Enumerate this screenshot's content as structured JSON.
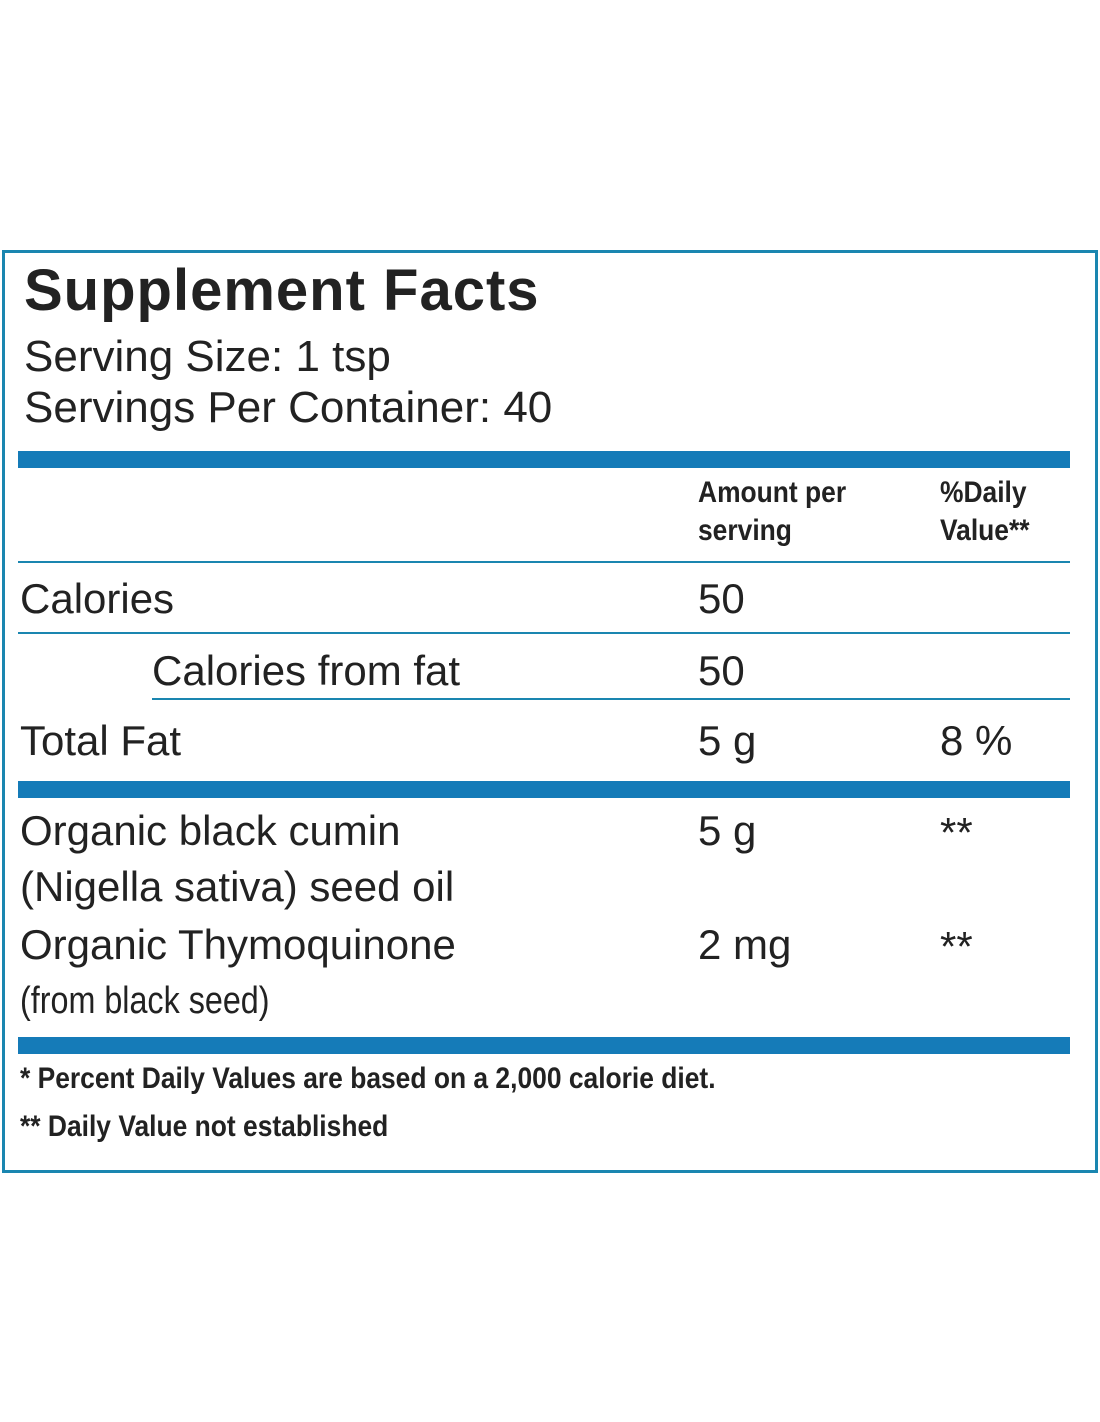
{
  "header": {
    "title": "Supplement Facts",
    "serving_size": "Serving Size: 1 tsp",
    "servings_per_container": "Servings Per Container: 40"
  },
  "table": {
    "columns": [
      "Amount per serving",
      "%Daily Value**"
    ],
    "rows": [
      {
        "name": "Calories",
        "amount": "50"
      },
      {
        "name": "Calories from fat",
        "amount": "50"
      },
      {
        "name": "Total Fat",
        "amount": "5 g",
        "daily_value": "8 %"
      },
      {
        "name": "Organic black cumin",
        "note": "(Nigella sativa) seed oil",
        "amount": "5 g",
        "daily_value": "**"
      },
      {
        "name": "Organic Thymoquinone",
        "note": "(from black seed)",
        "amount": "2 mg",
        "daily_value": "**"
      }
    ]
  },
  "footnotes": [
    "* Percent Daily Values are based on a 2,000 calorie diet.",
    "** Daily Value not established"
  ]
}
